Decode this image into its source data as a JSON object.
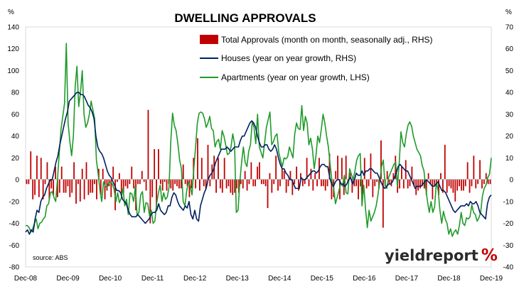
{
  "chart_data": {
    "type": "bar+line",
    "title": "DWELLING APPROVALS",
    "left_axis": {
      "unit": "%",
      "ylim": [
        -80,
        140
      ],
      "ticks": [
        -80,
        -60,
        -40,
        -20,
        0,
        20,
        40,
        60,
        80,
        100,
        120,
        140
      ]
    },
    "right_axis": {
      "unit": "%",
      "ylim": [
        -40,
        70
      ],
      "ticks": [
        -40,
        -30,
        -20,
        -10,
        0,
        10,
        20,
        30,
        40,
        50,
        60,
        70
      ]
    },
    "x_tick_labels": [
      "Dec-08",
      "Dec-09",
      "Dec-10",
      "Dec-11",
      "Dec-12",
      "Dec-13",
      "Dec-14",
      "Dec-15",
      "Dec-16",
      "Dec-17",
      "Dec-18",
      "Dec-19"
    ],
    "x_start": "Dec-08",
    "x_end": "Dec-19",
    "grid": false,
    "legend_position": "top-center",
    "source": "source: ABS",
    "series": [
      {
        "name": "Total Approvals (month on month, seasonally adj., RHS)",
        "type": "bar",
        "axis": "right",
        "color": "#c00000",
        "values": [
          -2,
          -2,
          13,
          -9,
          -7,
          11,
          -8,
          10,
          -9,
          -2,
          8,
          -9,
          -4,
          -7,
          6,
          -8,
          -6,
          6,
          -6,
          -6,
          -3,
          -8,
          -6,
          8,
          -11,
          -2,
          -10,
          5,
          -9,
          8,
          -7,
          -6,
          -6,
          -2,
          -9,
          5,
          -7,
          5,
          -9,
          -5,
          -3,
          -8,
          6,
          -14,
          -1,
          3,
          -6,
          -6,
          -3,
          -4,
          -2,
          6,
          -4,
          -14,
          -2,
          -2,
          4,
          -1,
          -5,
          32,
          -20,
          -8,
          14,
          -14,
          14,
          -2,
          -5,
          -1,
          -5,
          -2,
          -4,
          -5,
          -2,
          -3,
          -4,
          -4,
          7,
          -2,
          -3,
          -8,
          -4,
          10,
          -4,
          19,
          -5,
          10,
          -3,
          -4,
          16,
          -3,
          7,
          11,
          -6,
          10,
          -4,
          -6,
          10,
          -4,
          -3,
          -6,
          -7,
          -6,
          -4,
          -6,
          -2,
          -4,
          4,
          -5,
          -2,
          8,
          -3,
          -3,
          6,
          8,
          -2,
          -2,
          -3,
          -13,
          3,
          -6,
          -2,
          11,
          -5,
          -3,
          5,
          4,
          -6,
          -3,
          4,
          -7,
          -2,
          6,
          -5,
          3,
          -3,
          -2,
          10,
          -3,
          5,
          -5,
          3,
          -3,
          10,
          -3,
          -3,
          -5,
          -3,
          12,
          -9,
          -8,
          4,
          11,
          -9,
          10,
          -7,
          11,
          -1,
          3,
          -6,
          -3,
          -3,
          -9,
          -3,
          -7,
          10,
          -4,
          -3,
          12,
          -8,
          -3,
          -1,
          -4,
          18,
          -22,
          -3,
          4,
          -2,
          -3,
          3,
          11,
          -6,
          -4,
          6,
          -4,
          9,
          -4,
          -3,
          6,
          -3,
          -7,
          -5,
          -4,
          -3,
          -4,
          -7,
          3,
          -2,
          -9,
          -3,
          -2,
          -7,
          3,
          -6,
          16,
          -6,
          -3,
          -4,
          -6,
          -10,
          -5,
          -3,
          -5,
          -5,
          -3,
          8,
          -6,
          -3,
          11,
          -4,
          -2,
          9,
          -4,
          -2,
          3,
          -2,
          -2
        ]
      },
      {
        "name": "Houses (year on year growth, RHS)",
        "type": "line",
        "axis": "right",
        "color": "#002060",
        "values": [
          -24,
          -23,
          -25,
          -23,
          -24,
          -18,
          -14,
          -15,
          -10,
          -8,
          -7,
          -4,
          -2,
          0,
          0,
          4,
          8,
          11,
          16,
          20,
          24,
          28,
          31,
          36,
          37,
          38,
          39,
          40,
          40,
          39,
          39,
          38,
          36,
          34,
          33,
          31,
          28,
          20,
          15,
          13,
          12,
          10,
          7,
          4,
          2,
          1,
          -1,
          -3,
          -5,
          -5,
          -6,
          -9,
          -10,
          -11,
          -14,
          -16,
          -17,
          -17,
          -17,
          -16,
          -17,
          -18,
          -19,
          -20,
          -19,
          -18,
          -16,
          -15,
          -15,
          -14,
          -11,
          -14,
          -15,
          -16,
          -15,
          -12,
          -12,
          -8,
          -6,
          -7,
          -10,
          -12,
          -13,
          -14,
          -12,
          -13,
          -10,
          -16,
          -18,
          -14,
          -18,
          -19,
          -12,
          -9,
          -6,
          -4,
          0,
          2,
          3,
          5,
          8,
          10,
          12,
          14,
          14,
          14,
          15,
          14,
          13,
          14,
          15,
          15,
          15,
          18,
          20,
          20,
          22,
          24,
          26,
          27,
          26,
          24,
          20,
          17,
          15,
          15,
          16,
          16,
          14,
          13,
          14,
          16,
          14,
          10,
          7,
          5,
          5,
          3,
          2,
          0,
          0,
          -2,
          -4,
          -4,
          -4,
          1,
          0,
          0,
          1,
          2,
          3,
          4,
          4,
          3,
          4,
          6,
          7,
          7,
          6,
          6,
          1,
          -2,
          -3,
          -1,
          0,
          0,
          -2,
          -2,
          -3,
          -2,
          0,
          1,
          -2,
          0,
          3,
          2,
          2,
          4,
          2,
          4,
          4,
          5,
          5,
          4,
          3,
          3,
          1,
          -1,
          -3,
          -4,
          -3,
          -2,
          -2,
          -1,
          1,
          3,
          6,
          7,
          6,
          5,
          4,
          4,
          2,
          0,
          -2,
          -4,
          -3,
          -3,
          -3,
          -2,
          -1,
          0,
          -1,
          -2,
          -3,
          -3,
          -2,
          -1,
          -3,
          -5,
          -5,
          -6,
          -8,
          -10,
          -12,
          -14,
          -15,
          -14,
          -13,
          -12,
          -12,
          -12,
          -11,
          -12,
          -10,
          -11,
          -11,
          -10,
          -12,
          -15,
          -16,
          -17,
          -18,
          -11,
          -8,
          -7
        ]
      },
      {
        "name": "Apartments (year on year growth, LHS)",
        "type": "line",
        "axis": "left",
        "color": "#1f9a2a",
        "values": [
          -42,
          -42,
          -44,
          -48,
          -45,
          -40,
          -36,
          -45,
          -40,
          -39,
          -36,
          -34,
          -24,
          -22,
          -12,
          -11,
          -16,
          -20,
          0,
          24,
          46,
          58,
          70,
          125,
          52,
          35,
          22,
          40,
          85,
          104,
          67,
          80,
          100,
          60,
          48,
          52,
          60,
          72,
          64,
          56,
          18,
          5,
          -10,
          -20,
          -2,
          -6,
          -7,
          -3,
          -2,
          -4,
          -9,
          -20,
          -12,
          -21,
          -17,
          -8,
          -24,
          -18,
          -32,
          -12,
          -13,
          -20,
          -6,
          -33,
          -30,
          -14,
          -11,
          -30,
          -21,
          -22,
          -33,
          -28,
          -40,
          -38,
          -22,
          -12,
          -5,
          -20,
          -12,
          -18,
          -16,
          -7,
          35,
          61,
          50,
          45,
          33,
          18,
          10,
          -20,
          -24,
          -10,
          -2,
          -6,
          -14,
          10,
          30,
          52,
          61,
          62,
          61,
          56,
          48,
          52,
          58,
          47,
          45,
          30,
          35,
          37,
          28,
          45,
          40,
          32,
          23,
          24,
          30,
          42,
          33,
          -30,
          -28,
          -2,
          16,
          30,
          16,
          12,
          26,
          32,
          53,
          48,
          33,
          60,
          30,
          25,
          20,
          34,
          48,
          55,
          62,
          32,
          35,
          40,
          42,
          25,
          18,
          12,
          20,
          19,
          21,
          30,
          25,
          20,
          42,
          52,
          47,
          46,
          68,
          45,
          58,
          52,
          32,
          38,
          28,
          10,
          22,
          40,
          34,
          46,
          60,
          52,
          40,
          30,
          14,
          -1,
          -8,
          -22,
          -16,
          -10,
          -3,
          -6,
          4,
          -12,
          -13,
          10,
          5,
          0,
          8,
          18,
          22,
          24,
          -24,
          -5,
          -27,
          -44,
          -28,
          -38,
          -34,
          -30,
          -24,
          -14,
          -2,
          12,
          18,
          -4,
          -8,
          2,
          6,
          10,
          14,
          16,
          -6,
          15,
          44,
          34,
          30,
          42,
          50,
          53,
          49,
          40,
          34,
          28,
          25,
          22,
          13,
          8,
          -8,
          -20,
          -30,
          -20,
          -30,
          -25,
          -2,
          -10,
          -28,
          -40,
          -29,
          -36,
          -40,
          -50,
          -45,
          -52,
          -48,
          -46,
          -50,
          -42,
          -30,
          -40,
          -42,
          -35,
          -36,
          -34,
          -23,
          -30,
          -32,
          -38,
          -35,
          -30,
          -15,
          -8,
          -5,
          2,
          5,
          20
        ]
      }
    ]
  },
  "source_label": "source: ABS",
  "brand": {
    "name": "yieldreport",
    "mark": "%"
  }
}
